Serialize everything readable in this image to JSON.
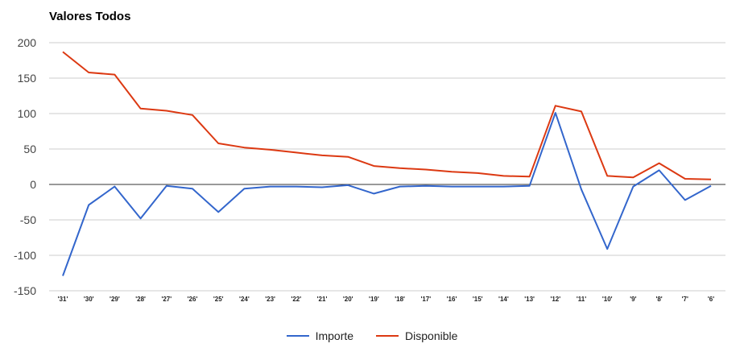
{
  "chart_data": {
    "type": "line",
    "title": "Valores Todos",
    "xlabel": "",
    "ylabel": "",
    "ylim": [
      -150,
      200
    ],
    "yticks": [
      -150,
      -100,
      -50,
      0,
      50,
      100,
      150,
      200
    ],
    "grid": true,
    "legend_position": "bottom",
    "categories": [
      "'31'",
      "'30'",
      "'29'",
      "'28'",
      "'27'",
      "'26'",
      "'25'",
      "'24'",
      "'23'",
      "'22'",
      "'21'",
      "'20'",
      "'19'",
      "'18'",
      "'17'",
      "'16'",
      "'15'",
      "'14'",
      "'13'",
      "'12'",
      "'11'",
      "'10'",
      "'9'",
      "'8'",
      "'7'",
      "'6'"
    ],
    "series": [
      {
        "name": "Importe",
        "color": "#3366cc",
        "values": [
          -129,
          -29,
          -3,
          -48,
          -2,
          -6,
          -39,
          -6,
          -3,
          -3,
          -4,
          -1,
          -13,
          -3,
          -2,
          -3,
          -3,
          -3,
          -2,
          101,
          -7,
          -91,
          -3,
          20,
          -22,
          -2
        ]
      },
      {
        "name": "Disponible",
        "color": "#dc3912",
        "values": [
          187,
          158,
          155,
          107,
          104,
          98,
          58,
          52,
          49,
          45,
          41,
          39,
          26,
          23,
          21,
          18,
          16,
          12,
          11,
          111,
          103,
          12,
          10,
          30,
          8,
          7
        ]
      }
    ]
  }
}
